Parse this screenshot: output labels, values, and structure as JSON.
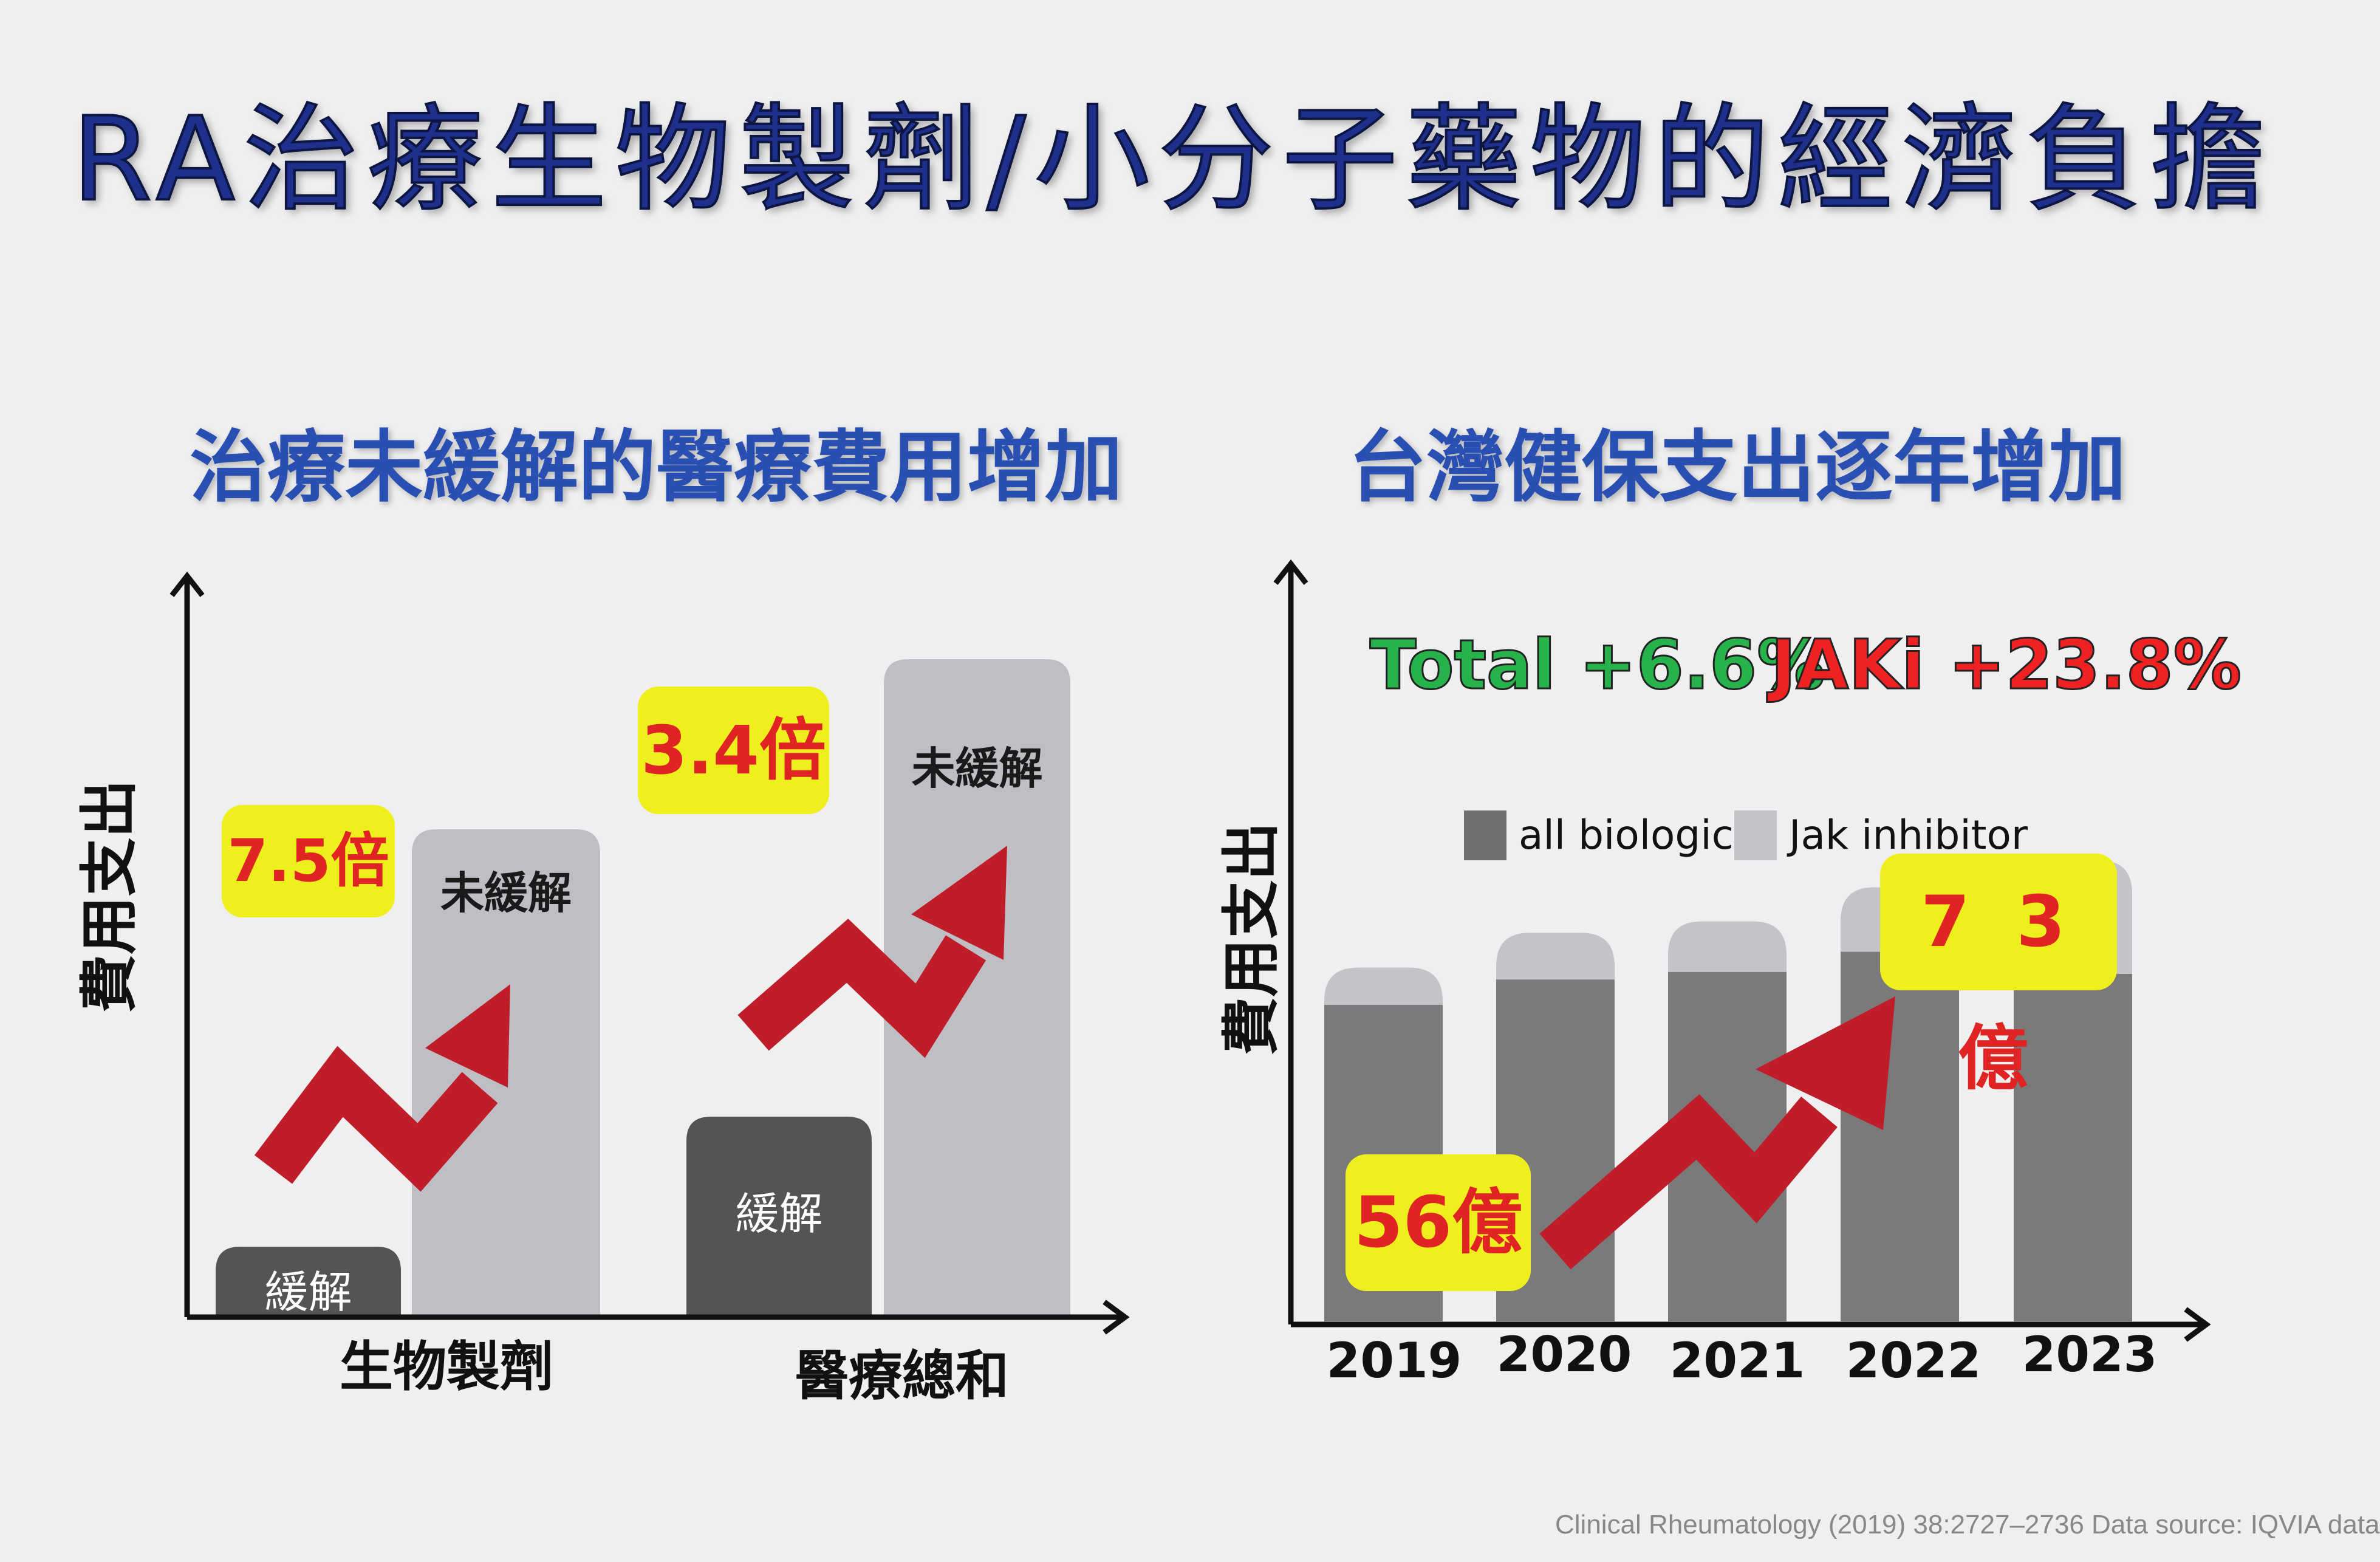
{
  "title": "RA治療生物製劑/小分子藥物的經濟負擔",
  "left_panel": {
    "subtitle": "治療未緩解的醫療費用增加",
    "ylabel": "費用支出",
    "badges": [
      "7.5倍",
      "3.4倍"
    ]
  },
  "right_panel": {
    "subtitle": "台灣健保支出逐年增加",
    "ylabel": "費用支出",
    "growth_total": "Total +6.6%",
    "growth_jaki": "JAKi +23.8%",
    "badge_start": "56億",
    "badge_end": "7 3 億"
  },
  "colors": {
    "remission": "#545454",
    "non_remission": "#bebec4",
    "all_biologics": "#7a7a7a",
    "jak_inhibitor": "#c4c4c8",
    "arrow": "#c01d2a",
    "badge": "#f0ef1e",
    "title": "#1f2f8c",
    "subtitle": "#2a4fb3",
    "total_text": "#28b24b",
    "jaki_text": "#ee2222"
  },
  "chart_data": [
    {
      "type": "bar",
      "categories": [
        "生物製劑",
        "醫療總和"
      ],
      "ylabel": "費用支出",
      "series": [
        {
          "name": "緩解",
          "values": [
            1,
            1
          ]
        },
        {
          "name": "未緩解",
          "values": [
            7.5,
            3.4
          ]
        }
      ],
      "annotations": [
        "7.5倍",
        "3.4倍"
      ]
    },
    {
      "type": "bar",
      "stacked": true,
      "categories": [
        "2019",
        "2020",
        "2021",
        "2022",
        "2023"
      ],
      "ylabel": "費用支出",
      "series": [
        {
          "name": "all biologics",
          "values": [
            50.1,
            54.1,
            55.3,
            58.5,
            55.0
          ]
        },
        {
          "name": "Jak inhibitor",
          "values": [
            5.9,
            7.4,
            8.0,
            10.2,
            18.0
          ]
        }
      ],
      "ylim": [
        0,
        80
      ],
      "legend": "top",
      "annotations": [
        "56億",
        "7 3 億",
        "Total +6.6%",
        "JAKi +23.8%"
      ]
    }
  ],
  "footnote": "Clinical Rheumatology (2019) 38:2727–2736      Data source: IQVIA data"
}
